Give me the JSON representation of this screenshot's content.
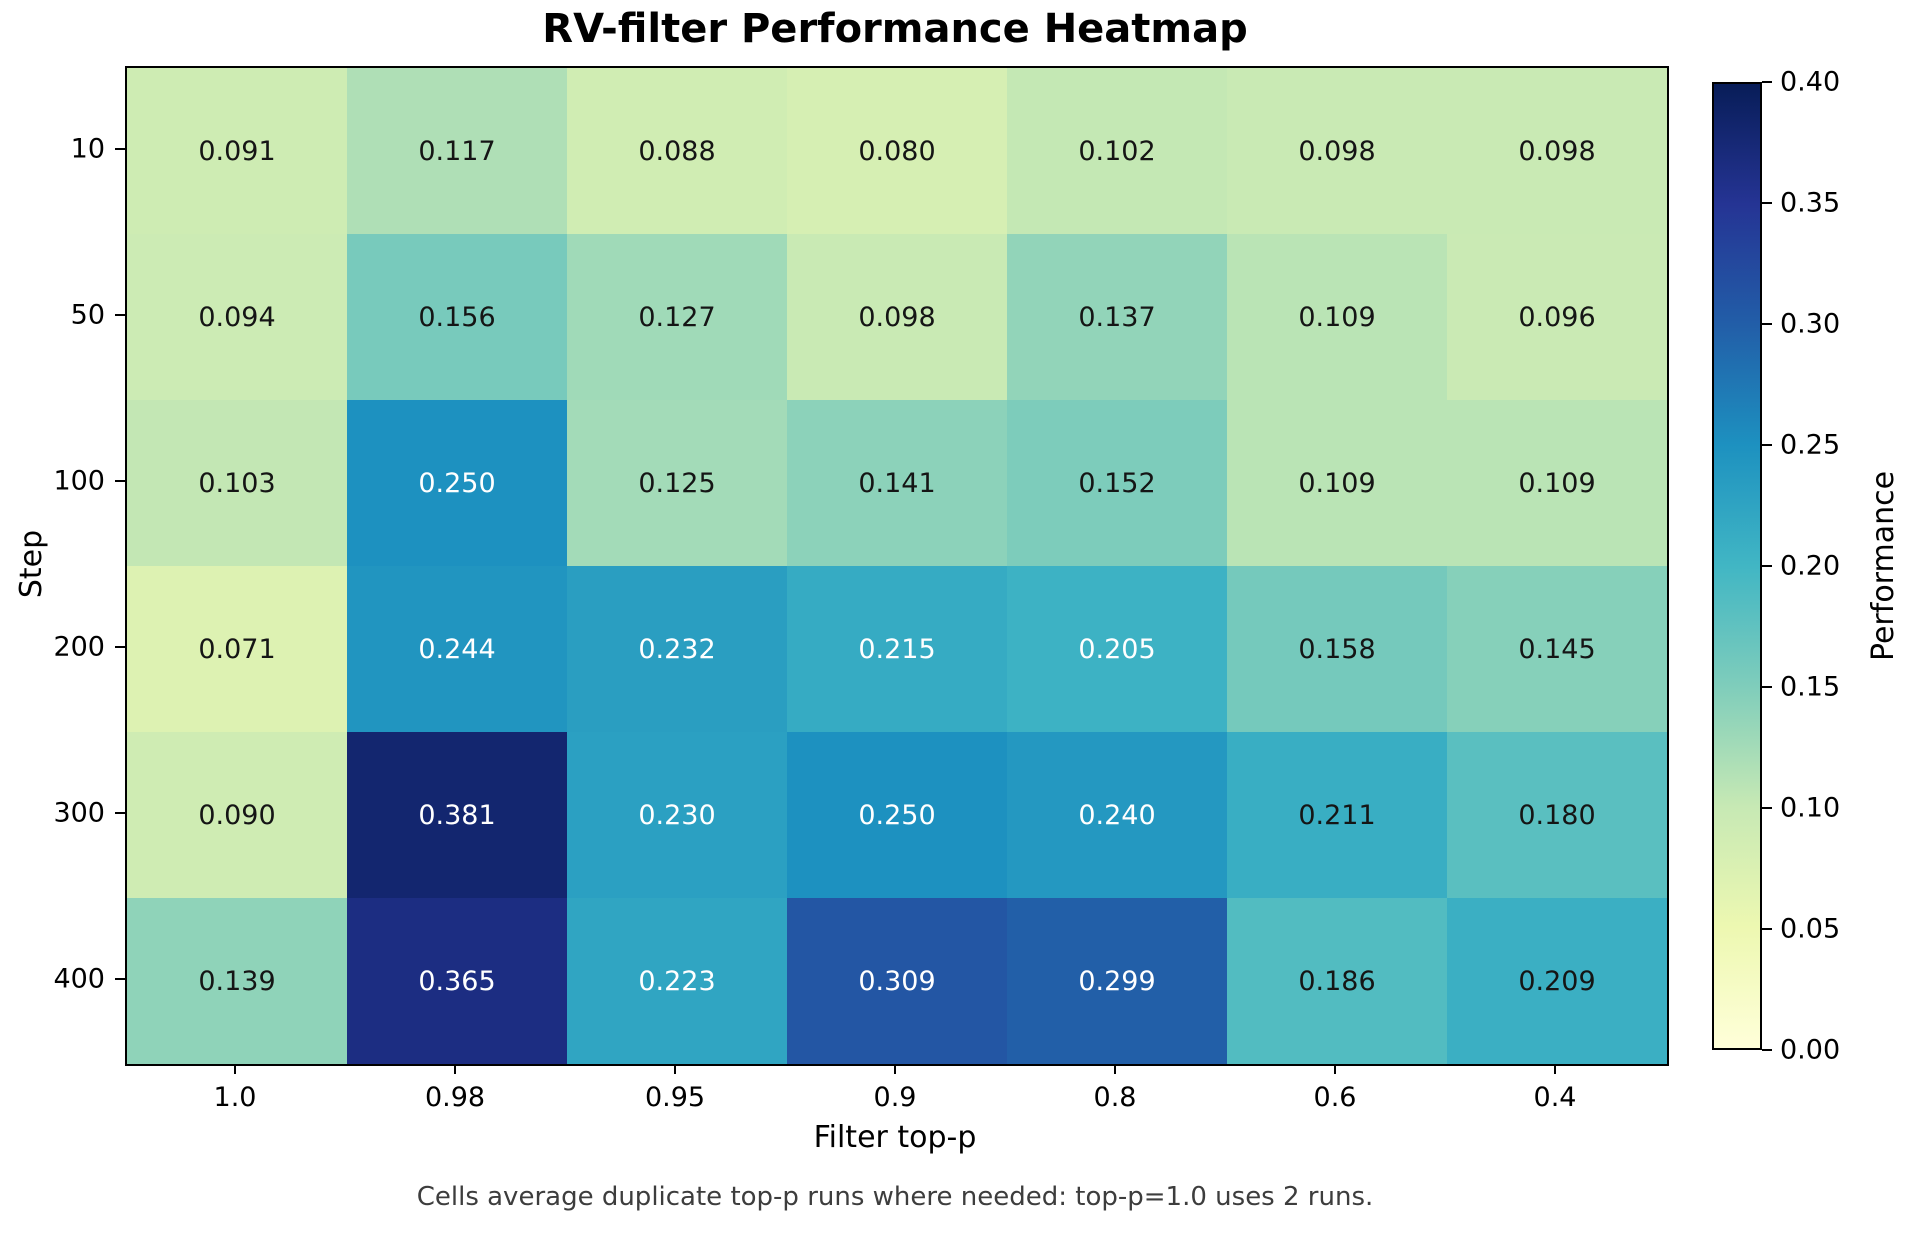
{
  "chart_data": {
    "type": "heatmap",
    "title": "RV-filter Performance Heatmap",
    "xlabel": "Filter top-p",
    "ylabel": "Step",
    "colorbar_label": "Performance",
    "x_categories": [
      "1.0",
      "0.98",
      "0.95",
      "0.9",
      "0.8",
      "0.6",
      "0.4"
    ],
    "y_categories": [
      "10",
      "50",
      "100",
      "200",
      "300",
      "400"
    ],
    "values": [
      [
        0.091,
        0.117,
        0.088,
        0.08,
        0.102,
        0.098,
        0.098
      ],
      [
        0.094,
        0.156,
        0.127,
        0.098,
        0.137,
        0.109,
        0.096
      ],
      [
        0.103,
        0.25,
        0.125,
        0.141,
        0.152,
        0.109,
        0.109
      ],
      [
        0.071,
        0.244,
        0.232,
        0.215,
        0.205,
        0.158,
        0.145
      ],
      [
        0.09,
        0.381,
        0.23,
        0.25,
        0.24,
        0.211,
        0.18
      ],
      [
        0.139,
        0.365,
        0.223,
        0.309,
        0.299,
        0.186,
        0.209
      ]
    ],
    "text_colors": [
      [
        "b",
        "b",
        "b",
        "b",
        "b",
        "b",
        "b"
      ],
      [
        "b",
        "b",
        "b",
        "b",
        "b",
        "b",
        "b"
      ],
      [
        "b",
        "w",
        "b",
        "b",
        "b",
        "b",
        "b"
      ],
      [
        "b",
        "w",
        "w",
        "w",
        "w",
        "b",
        "b"
      ],
      [
        "b",
        "w",
        "w",
        "w",
        "w",
        "b",
        "b"
      ],
      [
        "b",
        "w",
        "w",
        "w",
        "w",
        "b",
        "b"
      ]
    ],
    "vmin": 0.0,
    "vmax": 0.4,
    "colormap": "YlGnBu",
    "colormap_stops": [
      "#ffffd9",
      "#edf8b1",
      "#c7e9b4",
      "#7fcdbb",
      "#41b6c4",
      "#1d91c0",
      "#225ea8",
      "#253494",
      "#081d58"
    ],
    "colorbar_ticks": [
      "0.40",
      "0.35",
      "0.30",
      "0.25",
      "0.20",
      "0.15",
      "0.10",
      "0.05",
      "0.00"
    ],
    "annotation_dark_color": "#151515",
    "annotation_light_color": "#ffffff",
    "caption": "Cells average duplicate top-p runs where needed: top-p=1.0 uses 2 runs.",
    "caption_color": "#3d3d3d",
    "grid": false,
    "legend_position": "colorbar-right"
  }
}
